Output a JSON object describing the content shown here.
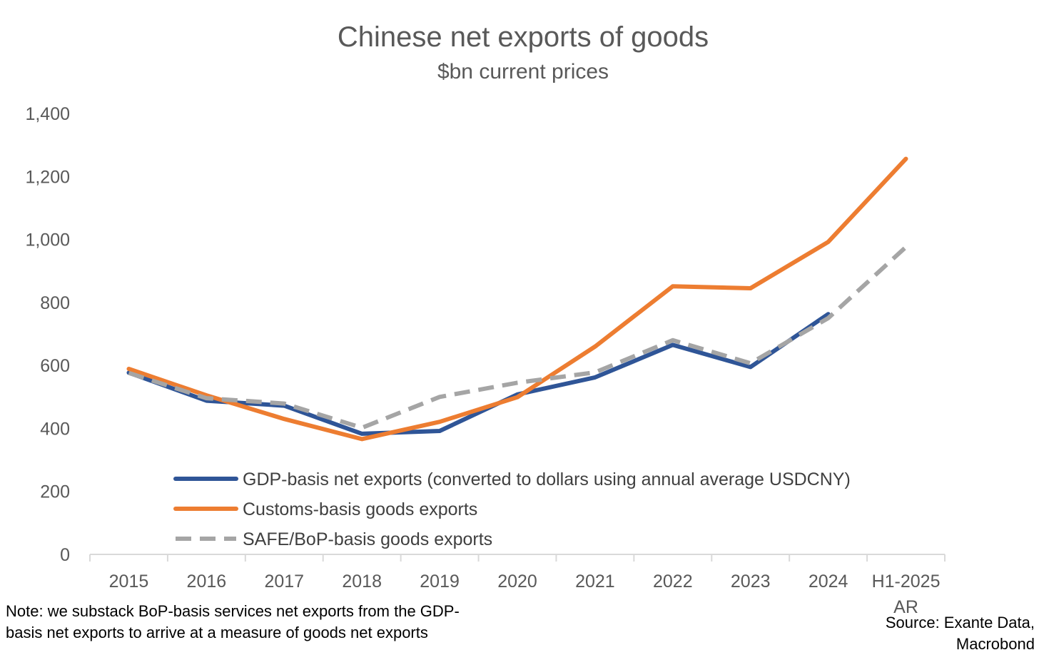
{
  "chart_data": {
    "type": "line",
    "title": "Chinese net exports of goods",
    "subtitle": "$bn current prices",
    "categories": [
      "2015",
      "2016",
      "2017",
      "2018",
      "2019",
      "2020",
      "2021",
      "2022",
      "2023",
      "2024",
      "H1-2025 AR"
    ],
    "ylim": [
      0,
      1400
    ],
    "yticks": [
      0,
      200,
      400,
      600,
      800,
      1000,
      1200,
      1400
    ],
    "ytick_labels": [
      "0",
      "200",
      "400",
      "600",
      "800",
      "1,000",
      "1,200",
      "1,400"
    ],
    "series": [
      {
        "name": "GDP-basis net exports (converted to dollars using annual average USDCNY)",
        "color": "#2F5597",
        "style": "solid",
        "values": [
          577,
          488,
          472,
          383,
          392,
          508,
          562,
          665,
          595,
          763,
          null
        ]
      },
      {
        "name": "Customs-basis goods exports",
        "color": "#ED7D31",
        "style": "solid",
        "values": [
          589,
          505,
          430,
          366,
          421,
          499,
          660,
          851,
          845,
          992,
          1256
        ]
      },
      {
        "name": "SAFE/BoP-basis goods exports",
        "color": "#A5A5A5",
        "style": "dashed",
        "values": [
          576,
          496,
          479,
          402,
          500,
          545,
          578,
          680,
          607,
          750,
          976
        ]
      }
    ],
    "legend_position": "bottom-center (inside plot)"
  },
  "note": {
    "line1": "Note: we substack BoP-basis services net exports from the GDP-",
    "line2": "basis net exports to arrive at a measure of goods net exports"
  },
  "source": {
    "line1": "Source: Exante Data,",
    "line2": "Macrobond"
  }
}
